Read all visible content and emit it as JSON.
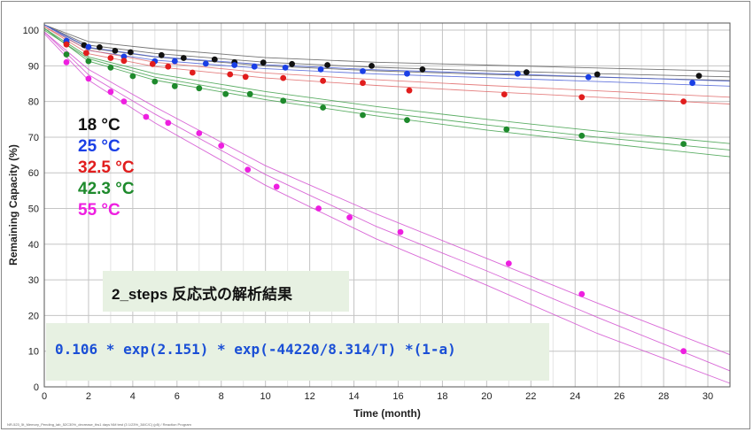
{
  "chart_data": {
    "type": "scatter",
    "xlabel": "Time (month)",
    "ylabel": "Remaining Capacity (%)",
    "xlim": [
      0,
      31
    ],
    "ylim": [
      0,
      102
    ],
    "x_ticks": [
      0,
      2,
      4,
      6,
      8,
      10,
      12,
      14,
      16,
      18,
      20,
      22,
      24,
      26,
      28,
      30
    ],
    "y_ticks": [
      0,
      10,
      20,
      30,
      40,
      50,
      60,
      70,
      80,
      90,
      100
    ],
    "grid": true,
    "series": [
      {
        "name": "18 °C",
        "color": "#111111",
        "points": [
          [
            1.0,
            96.5
          ],
          [
            1.8,
            95.8
          ],
          [
            2.5,
            95.2
          ],
          [
            3.2,
            94.2
          ],
          [
            3.9,
            93.8
          ],
          [
            5.3,
            93.0
          ],
          [
            6.3,
            92.2
          ],
          [
            7.7,
            91.8
          ],
          [
            8.6,
            91.0
          ],
          [
            9.9,
            90.9
          ],
          [
            11.2,
            90.5
          ],
          [
            12.8,
            90.2
          ],
          [
            14.8,
            90.0
          ],
          [
            17.1,
            89.0
          ],
          [
            21.8,
            88.2
          ],
          [
            25.0,
            87.6
          ],
          [
            29.6,
            87.2
          ]
        ]
      },
      {
        "name": "25 °C",
        "color": "#1a3fe6",
        "points": [
          [
            1.0,
            97.0
          ],
          [
            2.0,
            95.3
          ],
          [
            3.6,
            92.6
          ],
          [
            5.0,
            91.3
          ],
          [
            5.9,
            91.3
          ],
          [
            7.3,
            90.6
          ],
          [
            8.6,
            90.2
          ],
          [
            9.5,
            89.8
          ],
          [
            10.9,
            89.5
          ],
          [
            12.5,
            89.0
          ],
          [
            14.4,
            88.5
          ],
          [
            16.4,
            87.8
          ],
          [
            21.4,
            87.8
          ],
          [
            24.6,
            86.8
          ],
          [
            29.3,
            85.2
          ]
        ]
      },
      {
        "name": "32.5 °C",
        "color": "#e11d1d",
        "points": [
          [
            1.0,
            96.0
          ],
          [
            1.9,
            93.6
          ],
          [
            3.0,
            92.2
          ],
          [
            3.6,
            91.4
          ],
          [
            4.9,
            90.5
          ],
          [
            5.6,
            89.8
          ],
          [
            6.7,
            88.1
          ],
          [
            8.4,
            87.6
          ],
          [
            9.1,
            86.9
          ],
          [
            10.8,
            86.6
          ],
          [
            12.6,
            85.8
          ],
          [
            14.4,
            85.2
          ],
          [
            16.5,
            83.1
          ],
          [
            20.8,
            82.0
          ],
          [
            24.3,
            81.2
          ],
          [
            28.9,
            80.0
          ]
        ]
      },
      {
        "name": "42.3 °C",
        "color": "#1e8a2c",
        "points": [
          [
            1.0,
            93.2
          ],
          [
            2.0,
            91.3
          ],
          [
            3.0,
            89.5
          ],
          [
            4.0,
            87.1
          ],
          [
            5.0,
            85.6
          ],
          [
            5.9,
            84.3
          ],
          [
            7.0,
            83.7
          ],
          [
            8.2,
            82.1
          ],
          [
            9.3,
            82.1
          ],
          [
            10.8,
            80.2
          ],
          [
            12.6,
            78.3
          ],
          [
            14.4,
            76.2
          ],
          [
            16.4,
            74.8
          ],
          [
            20.9,
            72.2
          ],
          [
            24.3,
            70.4
          ],
          [
            28.9,
            68.1
          ]
        ]
      },
      {
        "name": "55 °C",
        "color": "#ee1fe0",
        "points": [
          [
            1.0,
            91.0
          ],
          [
            2.0,
            86.4
          ],
          [
            3.0,
            82.7
          ],
          [
            3.6,
            80.0
          ],
          [
            4.6,
            75.7
          ],
          [
            5.6,
            74.0
          ],
          [
            7.0,
            71.1
          ],
          [
            8.0,
            67.6
          ],
          [
            9.2,
            60.9
          ],
          [
            10.5,
            56.1
          ],
          [
            12.4,
            50.0
          ],
          [
            13.8,
            47.5
          ],
          [
            16.1,
            43.4
          ],
          [
            21.0,
            34.6
          ],
          [
            24.3,
            26.0
          ],
          [
            28.9,
            10.0
          ]
        ]
      }
    ],
    "fit_lines": [
      {
        "color": "#5a5a5a",
        "curves": [
          [
            [
              0,
              101.5
            ],
            [
              2,
              96.8
            ],
            [
              5,
              94.8
            ],
            [
              10,
              92.3
            ],
            [
              15,
              91.0
            ],
            [
              20,
              90.2
            ],
            [
              25,
              89.4
            ],
            [
              31,
              88.5
            ]
          ],
          [
            [
              0,
              101.5
            ],
            [
              2,
              95.8
            ],
            [
              5,
              93.5
            ],
            [
              10,
              91.0
            ],
            [
              15,
              89.6
            ],
            [
              20,
              88.6
            ],
            [
              25,
              87.8
            ],
            [
              31,
              86.9
            ]
          ],
          [
            [
              0,
              101.5
            ],
            [
              2,
              95.0
            ],
            [
              5,
              92.5
            ],
            [
              10,
              90.0
            ],
            [
              15,
              88.6
            ],
            [
              20,
              87.6
            ],
            [
              25,
              86.8
            ],
            [
              31,
              85.9
            ]
          ]
        ]
      },
      {
        "color": "#4a5fd8",
        "curves": [
          [
            [
              0,
              101.5
            ],
            [
              2,
              95.2
            ],
            [
              5,
              92.6
            ],
            [
              10,
              90.3
            ],
            [
              15,
              88.9
            ],
            [
              20,
              87.9
            ],
            [
              25,
              86.9
            ],
            [
              31,
              85.7
            ]
          ],
          [
            [
              0,
              101.5
            ],
            [
              2,
              94.3
            ],
            [
              5,
              91.6
            ],
            [
              10,
              89.2
            ],
            [
              15,
              87.7
            ],
            [
              20,
              86.7
            ],
            [
              25,
              85.6
            ],
            [
              31,
              84.3
            ]
          ]
        ]
      },
      {
        "color": "#e06a6a",
        "curves": [
          [
            [
              0,
              101.0
            ],
            [
              2,
              94.4
            ],
            [
              5,
              91.0
            ],
            [
              10,
              88.0
            ],
            [
              15,
              86.1
            ],
            [
              20,
              84.5
            ],
            [
              25,
              83.0
            ],
            [
              31,
              81.2
            ]
          ],
          [
            [
              0,
              101.0
            ],
            [
              2,
              93.4
            ],
            [
              5,
              89.8
            ],
            [
              10,
              86.6
            ],
            [
              15,
              84.5
            ],
            [
              20,
              82.8
            ],
            [
              25,
              81.2
            ],
            [
              31,
              79.3
            ]
          ]
        ]
      },
      {
        "color": "#3fa04a",
        "curves": [
          [
            [
              0,
              100.5
            ],
            [
              2,
              92.5
            ],
            [
              5,
              87.8
            ],
            [
              10,
              82.8
            ],
            [
              15,
              78.6
            ],
            [
              20,
              75.0
            ],
            [
              25,
              71.7
            ],
            [
              31,
              68.2
            ]
          ],
          [
            [
              0,
              100.5
            ],
            [
              2,
              91.3
            ],
            [
              5,
              86.0
            ],
            [
              10,
              80.5
            ],
            [
              15,
              76.0
            ],
            [
              20,
              72.0
            ],
            [
              25,
              68.5
            ],
            [
              31,
              64.5
            ]
          ],
          [
            [
              0,
              100.0
            ],
            [
              2,
              92.0
            ],
            [
              5,
              86.8
            ],
            [
              10,
              81.5
            ],
            [
              15,
              77.1
            ],
            [
              20,
              73.4
            ],
            [
              25,
              70.0
            ],
            [
              31,
              66.4
            ]
          ]
        ]
      },
      {
        "color": "#d24fd0",
        "curves": [
          [
            [
              0,
              99.5
            ],
            [
              2,
              87.5
            ],
            [
              5,
              76.5
            ],
            [
              10,
              59.5
            ],
            [
              15,
              45.0
            ],
            [
              20,
              32.5
            ],
            [
              25,
              19.5
            ],
            [
              31,
              4.5
            ]
          ],
          [
            [
              0,
              99.5
            ],
            [
              2,
              89.0
            ],
            [
              5,
              78.5
            ],
            [
              10,
              62.0
            ],
            [
              15,
              48.5
            ],
            [
              20,
              36.0
            ],
            [
              25,
              23.5
            ],
            [
              31,
              9.0
            ]
          ],
          [
            [
              0,
              99.0
            ],
            [
              2,
              86.0
            ],
            [
              5,
              74.0
            ],
            [
              10,
              56.5
            ],
            [
              15,
              41.5
            ],
            [
              20,
              28.5
            ],
            [
              25,
              15.0
            ],
            [
              31,
              1.0
            ]
          ]
        ]
      }
    ],
    "annotation_method": "2_steps 反応式の解析結果",
    "annotation_formula": "0.106 * exp(2.151) * exp(-44220/8.314/T) *(1-a)"
  },
  "footer_caption": "NR-523_5t_Memory_Pending_lab_52C30%_decrease_ths1 days NM test (3 1/23%_38/C/C) (p5) / Reaction Program"
}
